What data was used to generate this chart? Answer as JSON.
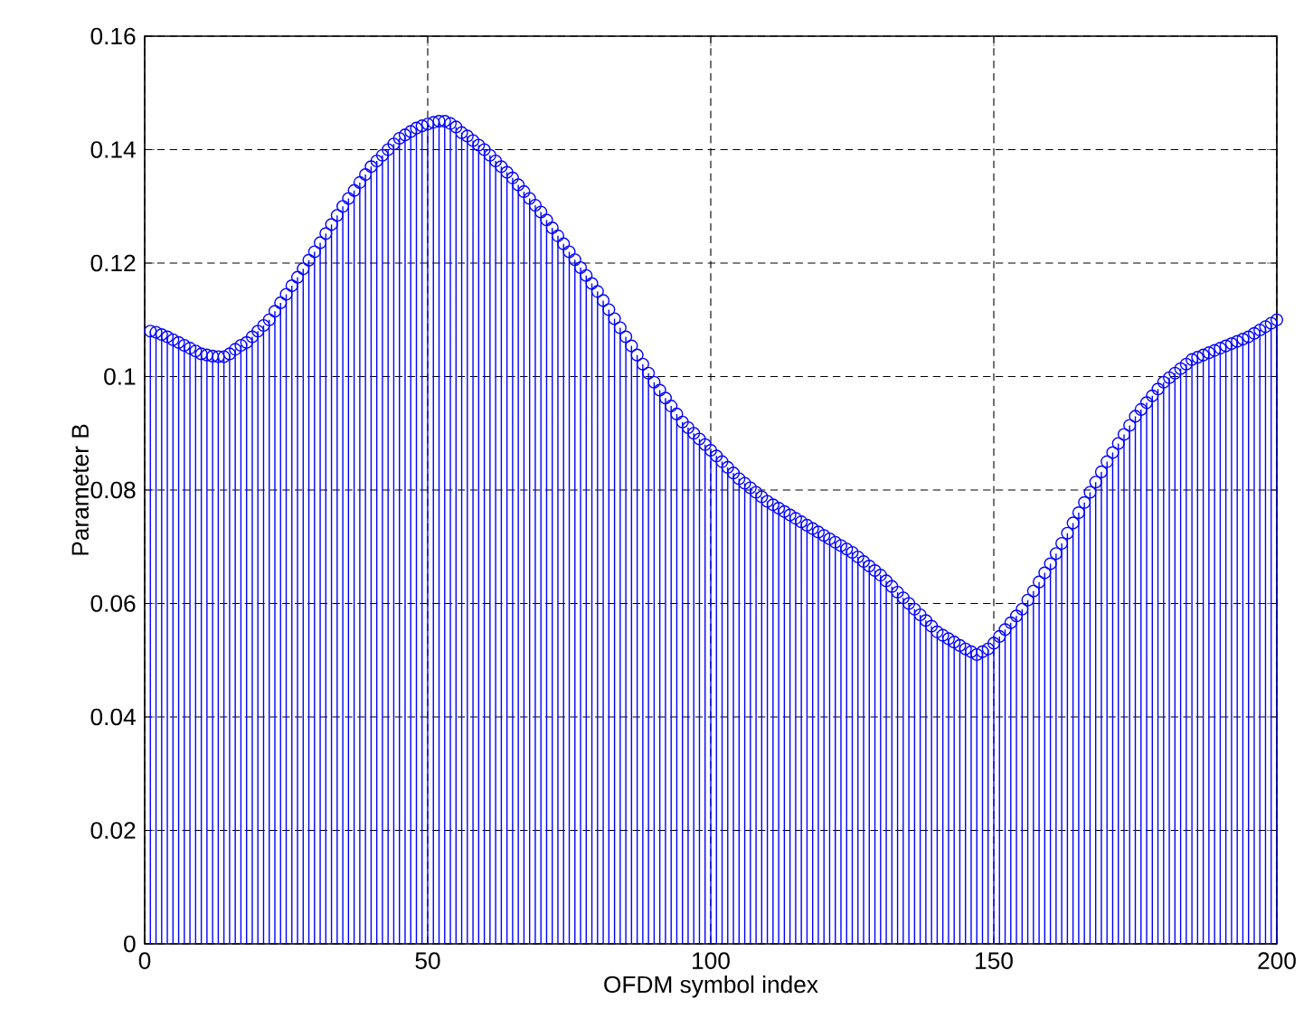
{
  "chart_data": {
    "type": "lollipop",
    "xlabel": "OFDM symbol index",
    "ylabel": "Parameter B",
    "color": "#0000ff",
    "marker": "circle",
    "grid": true,
    "xlim": [
      0,
      200
    ],
    "ylim": [
      0,
      0.16
    ],
    "xticks": [
      0,
      50,
      100,
      150,
      200
    ],
    "yticks": [
      0,
      0.02,
      0.04,
      0.06,
      0.08,
      0.1,
      0.12,
      0.14,
      0.16
    ],
    "x": [
      1,
      2,
      3,
      4,
      5,
      6,
      7,
      8,
      9,
      10,
      11,
      12,
      13,
      14,
      15,
      16,
      17,
      18,
      19,
      20,
      21,
      22,
      23,
      24,
      25,
      26,
      27,
      28,
      29,
      30,
      31,
      32,
      33,
      34,
      35,
      36,
      37,
      38,
      39,
      40,
      41,
      42,
      43,
      44,
      45,
      46,
      47,
      48,
      49,
      50,
      51,
      52,
      53,
      54,
      55,
      56,
      57,
      58,
      59,
      60,
      61,
      62,
      63,
      64,
      65,
      66,
      67,
      68,
      69,
      70,
      71,
      72,
      73,
      74,
      75,
      76,
      77,
      78,
      79,
      80,
      81,
      82,
      83,
      84,
      85,
      86,
      87,
      88,
      89,
      90,
      91,
      92,
      93,
      94,
      95,
      96,
      97,
      98,
      99,
      100,
      101,
      102,
      103,
      104,
      105,
      106,
      107,
      108,
      109,
      110,
      111,
      112,
      113,
      114,
      115,
      116,
      117,
      118,
      119,
      120,
      121,
      122,
      123,
      124,
      125,
      126,
      127,
      128,
      129,
      130,
      131,
      132,
      133,
      134,
      135,
      136,
      137,
      138,
      139,
      140,
      141,
      142,
      143,
      144,
      145,
      146,
      147,
      148,
      149,
      150,
      151,
      152,
      153,
      154,
      155,
      156,
      157,
      158,
      159,
      160,
      161,
      162,
      163,
      164,
      165,
      166,
      167,
      168,
      169,
      170,
      171,
      172,
      173,
      174,
      175,
      176,
      177,
      178,
      179,
      180,
      181,
      182,
      183,
      184,
      185,
      186,
      187,
      188,
      189,
      190,
      191,
      192,
      193,
      194,
      195,
      196,
      197,
      198,
      199,
      200
    ],
    "values": [
      0.108,
      0.1078,
      0.1074,
      0.107,
      0.1065,
      0.106,
      0.1055,
      0.105,
      0.1045,
      0.104,
      0.1038,
      0.1036,
      0.1035,
      0.1035,
      0.104,
      0.1048,
      0.1055,
      0.106,
      0.107,
      0.108,
      0.109,
      0.11,
      0.1115,
      0.113,
      0.1145,
      0.116,
      0.1175,
      0.119,
      0.1205,
      0.122,
      0.1236,
      0.1252,
      0.1268,
      0.1284,
      0.13,
      0.1314,
      0.1328,
      0.1342,
      0.1356,
      0.137,
      0.138,
      0.139,
      0.14,
      0.141,
      0.142,
      0.1426,
      0.1432,
      0.1438,
      0.1442,
      0.1445,
      0.1448,
      0.145,
      0.145,
      0.1446,
      0.144,
      0.143,
      0.1424,
      0.1416,
      0.1408,
      0.14,
      0.139,
      0.138,
      0.137,
      0.136,
      0.135,
      0.1338,
      0.1326,
      0.1314,
      0.1302,
      0.129,
      0.1276,
      0.1262,
      0.1248,
      0.1234,
      0.122,
      0.1206,
      0.1192,
      0.1178,
      0.1164,
      0.115,
      0.1134,
      0.1118,
      0.1102,
      0.1086,
      0.107,
      0.1054,
      0.1038,
      0.1022,
      0.1006,
      0.099,
      0.0976,
      0.0962,
      0.0948,
      0.0934,
      0.092,
      0.091,
      0.09,
      0.089,
      0.088,
      0.087,
      0.086,
      0.085,
      0.084,
      0.083,
      0.082,
      0.0812,
      0.0804,
      0.0796,
      0.0788,
      0.078,
      0.0774,
      0.0768,
      0.0762,
      0.0756,
      0.075,
      0.0744,
      0.0738,
      0.0732,
      0.0726,
      0.072,
      0.0714,
      0.0708,
      0.0702,
      0.0696,
      0.069,
      0.0682,
      0.0674,
      0.0666,
      0.0658,
      0.065,
      0.064,
      0.063,
      0.062,
      0.061,
      0.06,
      0.059,
      0.058,
      0.057,
      0.056,
      0.055,
      0.0544,
      0.0538,
      0.0532,
      0.0526,
      0.052,
      0.0515,
      0.051,
      0.0515,
      0.052,
      0.053,
      0.0542,
      0.0554,
      0.0566,
      0.0578,
      0.059,
      0.0606,
      0.0622,
      0.0638,
      0.0654,
      0.067,
      0.0688,
      0.0706,
      0.0724,
      0.0742,
      0.076,
      0.0778,
      0.0796,
      0.0814,
      0.0832,
      0.085,
      0.0866,
      0.0882,
      0.0898,
      0.0914,
      0.093,
      0.0942,
      0.0954,
      0.0966,
      0.0978,
      0.099,
      0.0998,
      0.1006,
      0.1014,
      0.1022,
      0.103,
      0.1034,
      0.1038,
      0.1042,
      0.1046,
      0.105,
      0.1054,
      0.1058,
      0.1062,
      0.1066,
      0.107,
      0.1076,
      0.1082,
      0.1088,
      0.1094,
      0.11
    ]
  }
}
